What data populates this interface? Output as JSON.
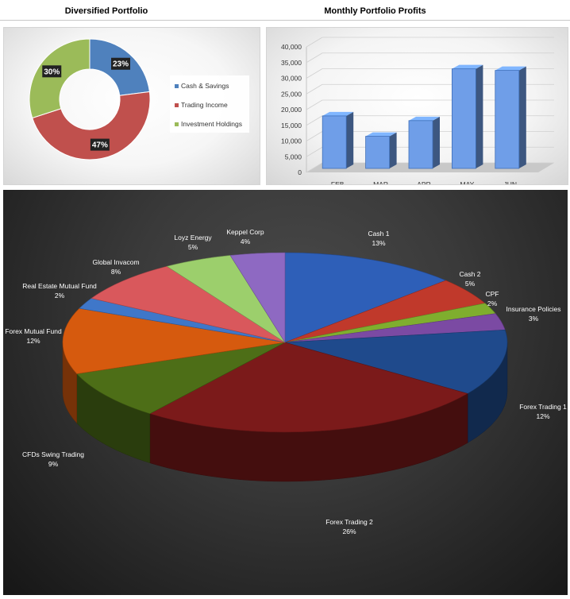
{
  "titles": {
    "donut": "Diversified Portfolio",
    "bars": "Monthly Portfolio Profits"
  },
  "chart_data": [
    {
      "type": "pie",
      "variant": "donut",
      "title": "Diversified Portfolio",
      "legend_position": "right",
      "categories": [
        "Cash & Savings",
        "Trading Income",
        "Investment Holdings"
      ],
      "values": [
        23,
        47,
        30
      ],
      "labels": [
        "23%",
        "47%",
        "30%"
      ],
      "colors": [
        "#4f81bd",
        "#c0504d",
        "#9bbb59"
      ]
    },
    {
      "type": "bar",
      "style": "3d-column",
      "title": "Monthly Portfolio Profits",
      "categories": [
        "FEB",
        "MAR",
        "APR",
        "MAY",
        "JUN"
      ],
      "values": [
        18000,
        11500,
        16500,
        33000,
        32500
      ],
      "ylim": [
        0,
        40000
      ],
      "yticks": [
        "0",
        "5,000",
        "10,000",
        "15,000",
        "20,000",
        "25,000",
        "30,000",
        "35,000",
        "40,000"
      ],
      "grid": true,
      "color": "#6f9ee8"
    },
    {
      "type": "pie",
      "style": "3d",
      "categories": [
        "Cash 1",
        "Cash 2",
        "CPF",
        "Insurance Policies",
        "Forex Trading 1",
        "Forex Trading 2",
        "CFDs Swing Trading",
        "Forex Mutual Fund",
        "Real Estate Mutual Fund",
        "Global Invacom",
        "Loyz Energy",
        "Keppel Corp"
      ],
      "values": [
        13,
        5,
        2,
        3,
        12,
        26,
        9,
        12,
        2,
        8,
        5,
        4
      ],
      "labels": [
        "13%",
        "5%",
        "2%",
        "3%",
        "12%",
        "26%",
        "9%",
        "12%",
        "2%",
        "8%",
        "5%",
        "4%"
      ],
      "colors": [
        "#2e5fb8",
        "#c0392b",
        "#7fae2e",
        "#7b4aa3",
        "#1f4a8c",
        "#7b1a1a",
        "#4d6e17",
        "#d65a0e",
        "#3f77c9",
        "#d9585c",
        "#9ccf6c",
        "#8e69c2"
      ]
    }
  ]
}
